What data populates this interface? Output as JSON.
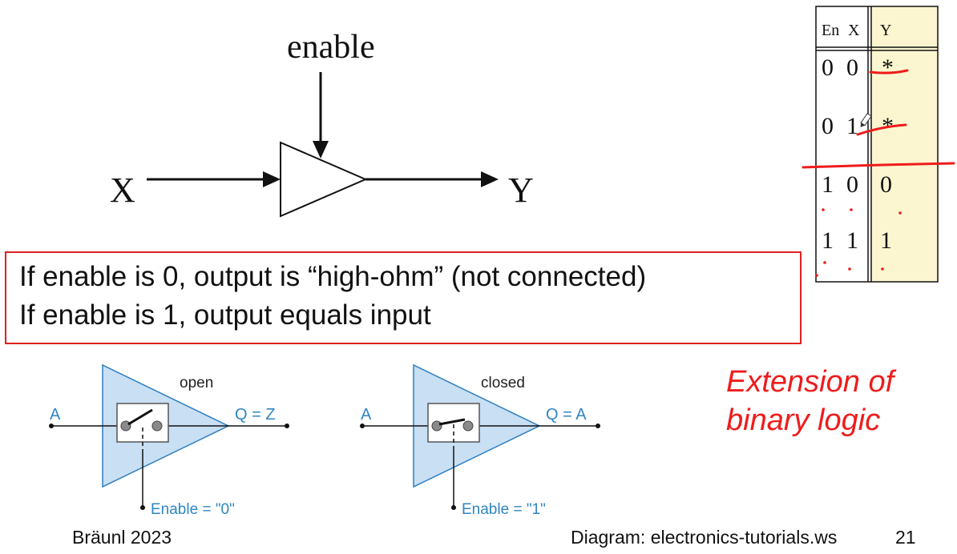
{
  "diagram": {
    "enable_label": "enable",
    "input_label": "X",
    "output_label": "Y"
  },
  "truth_table": {
    "headers": {
      "en": "En",
      "x": "X",
      "y": "Y"
    },
    "rows": [
      {
        "en": "0",
        "x": "0",
        "y": "*"
      },
      {
        "en": "0",
        "x": "1",
        "y": "*"
      },
      {
        "en": "1",
        "x": "0",
        "y": "0"
      },
      {
        "en": "1",
        "x": "1",
        "y": "1"
      }
    ]
  },
  "info": {
    "line1": "If enable is 0, output is “high-ohm” (not connected)",
    "line2": "If enable is 1, output equals input"
  },
  "buffer_open": {
    "state": "open",
    "input": "A",
    "output": "Q = Z",
    "enable": "Enable = \"0\""
  },
  "buffer_closed": {
    "state": "closed",
    "input": "A",
    "output": "Q = A",
    "enable": "Enable = \"1\""
  },
  "extension": {
    "line1": "Extension of",
    "line2": "binary logic"
  },
  "footer": {
    "author": "Bräunl 2023",
    "credit": "Diagram: electronics-tutorials.ws",
    "page": "21"
  },
  "colors": {
    "accent_red": "#ee1c1c",
    "buffer_fill": "#c8dff4",
    "buffer_stroke": "#2f7fc0",
    "label_blue": "#2f86c2",
    "table_y_bg": "#fbf6d0"
  }
}
